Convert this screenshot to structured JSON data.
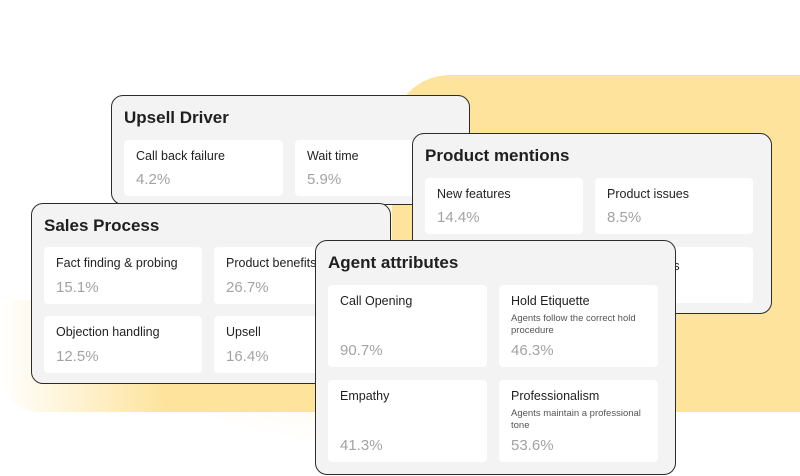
{
  "upsell_driver": {
    "title": "Upsell Driver",
    "tiles": [
      {
        "label": "Call back failure",
        "value": "4.2%"
      },
      {
        "label": "Wait time",
        "value": "5.9%"
      }
    ]
  },
  "product_mentions": {
    "title": "Product mentions",
    "tiles": [
      {
        "label": "New features",
        "value": "14.4%"
      },
      {
        "label": "Product issues",
        "value": "8.5%"
      },
      {
        "label": "",
        "value": ""
      },
      {
        "label": "emes",
        "value": ""
      }
    ]
  },
  "sales_process": {
    "title": "Sales Process",
    "tiles": [
      {
        "label": "Fact finding & probing",
        "value": "15.1%"
      },
      {
        "label": "Product benefits",
        "value": "26.7%"
      },
      {
        "label": "Objection handling",
        "value": "12.5%"
      },
      {
        "label": "Upsell",
        "value": "16.4%"
      }
    ]
  },
  "agent_attributes": {
    "title": "Agent attributes",
    "tiles": [
      {
        "label": "Call Opening",
        "description": "",
        "value": "90.7%"
      },
      {
        "label": "Hold Etiquette",
        "description": "Agents follow the correct hold procedure",
        "value": "46.3%"
      },
      {
        "label": "Empathy",
        "description": "",
        "value": "41.3%"
      },
      {
        "label": "Professionalism",
        "description": "Agents maintain a professional tone",
        "value": "53.6%"
      }
    ]
  }
}
